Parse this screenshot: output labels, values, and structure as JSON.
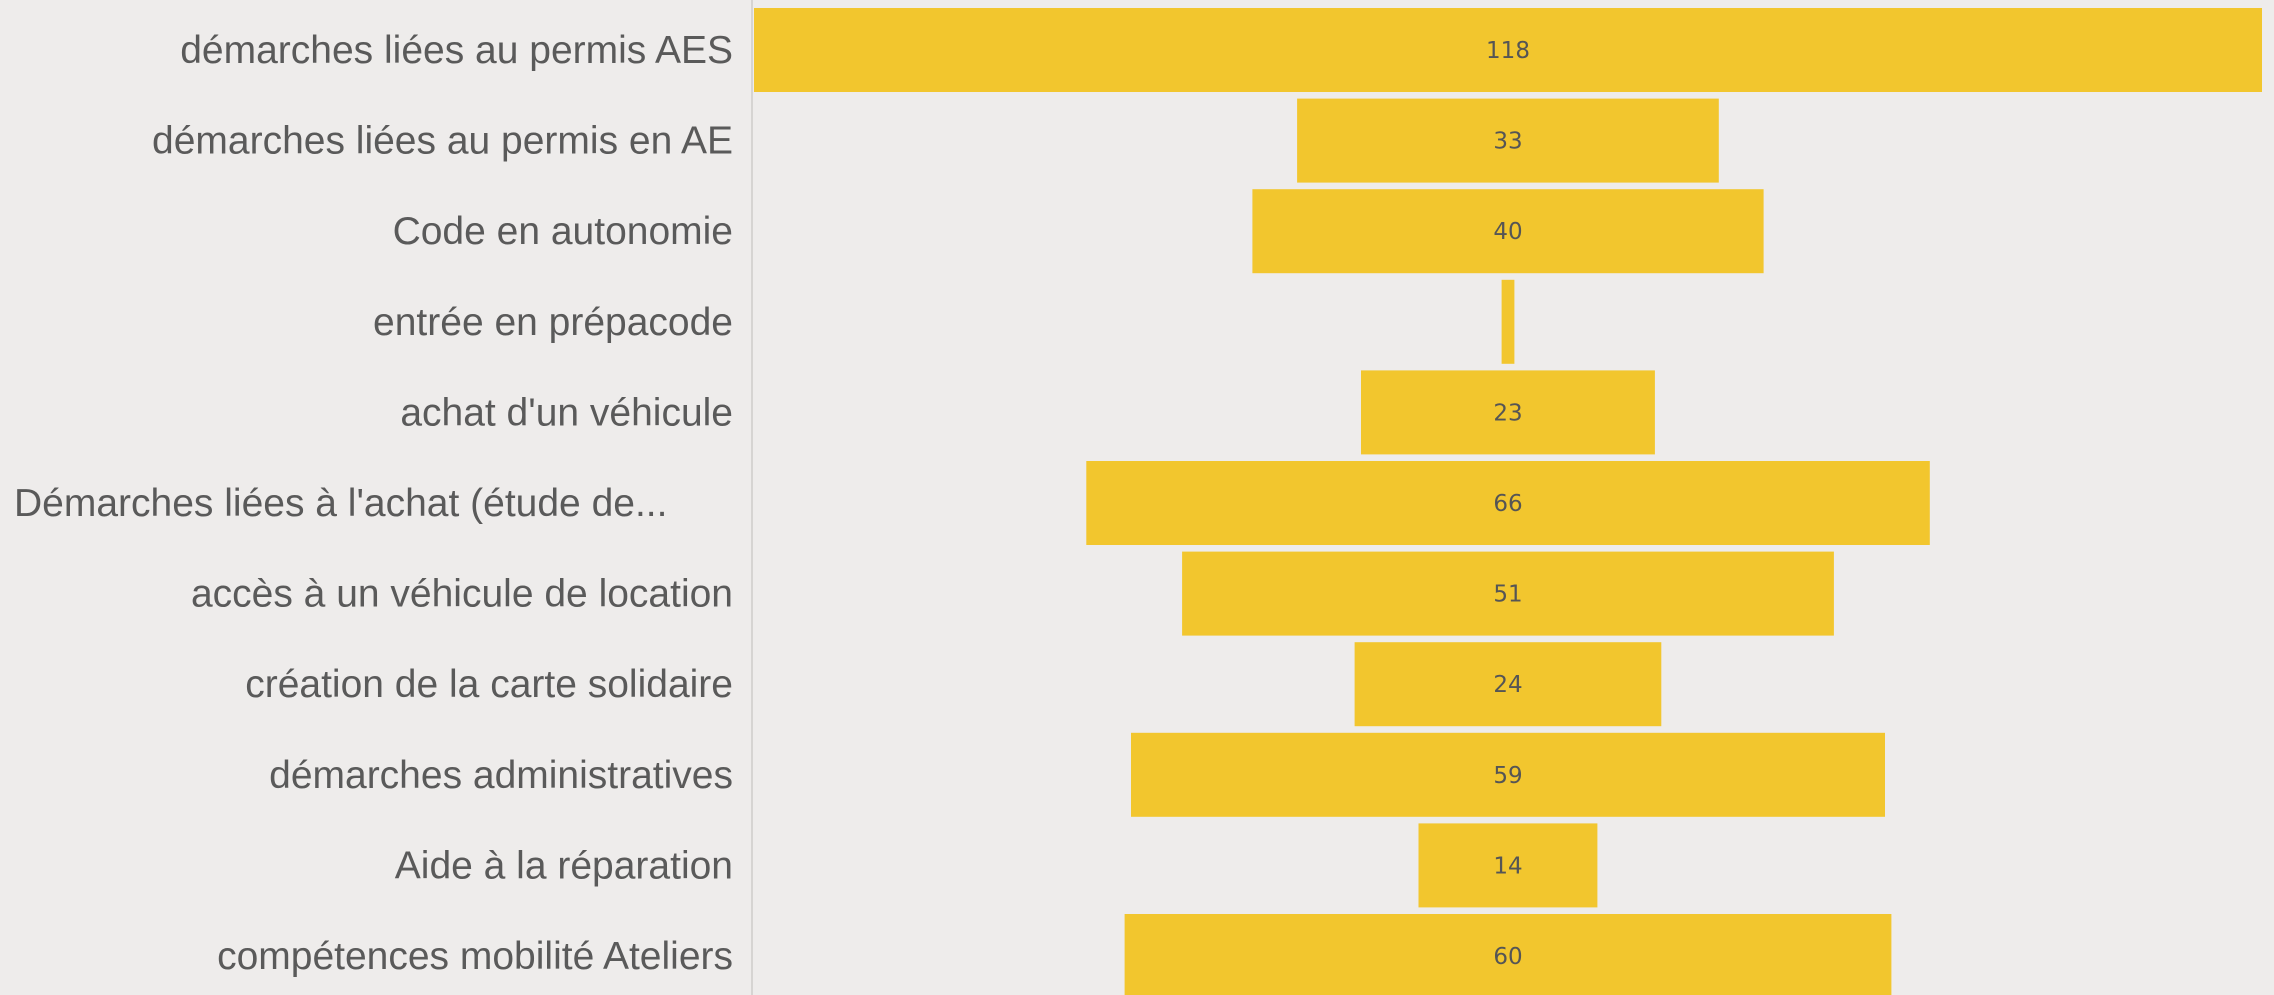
{
  "chart_data": {
    "type": "bar",
    "orientation": "horizontal-centered",
    "categories": [
      "démarches liées au permis AES",
      "démarches liées au permis en AE",
      "Code en autonomie",
      "entrée en prépacode",
      "achat d'un véhicule",
      "Démarches liées à l'achat (étude de...",
      "accès à un véhicule de location",
      "création de la carte solidaire",
      "démarches administratives",
      "Aide à la réparation",
      "compétences mobilité Ateliers"
    ],
    "values": [
      118,
      33,
      40,
      1,
      23,
      66,
      51,
      24,
      59,
      14,
      60
    ],
    "value_labels": [
      "118",
      "33",
      "40",
      "",
      "23",
      "66",
      "51",
      "24",
      "59",
      "14",
      "60"
    ],
    "title": "",
    "xlabel": "",
    "ylabel": "",
    "xlim": [
      0,
      118
    ],
    "grid": false,
    "legend": "none",
    "bar_color": "#f2c62e"
  }
}
